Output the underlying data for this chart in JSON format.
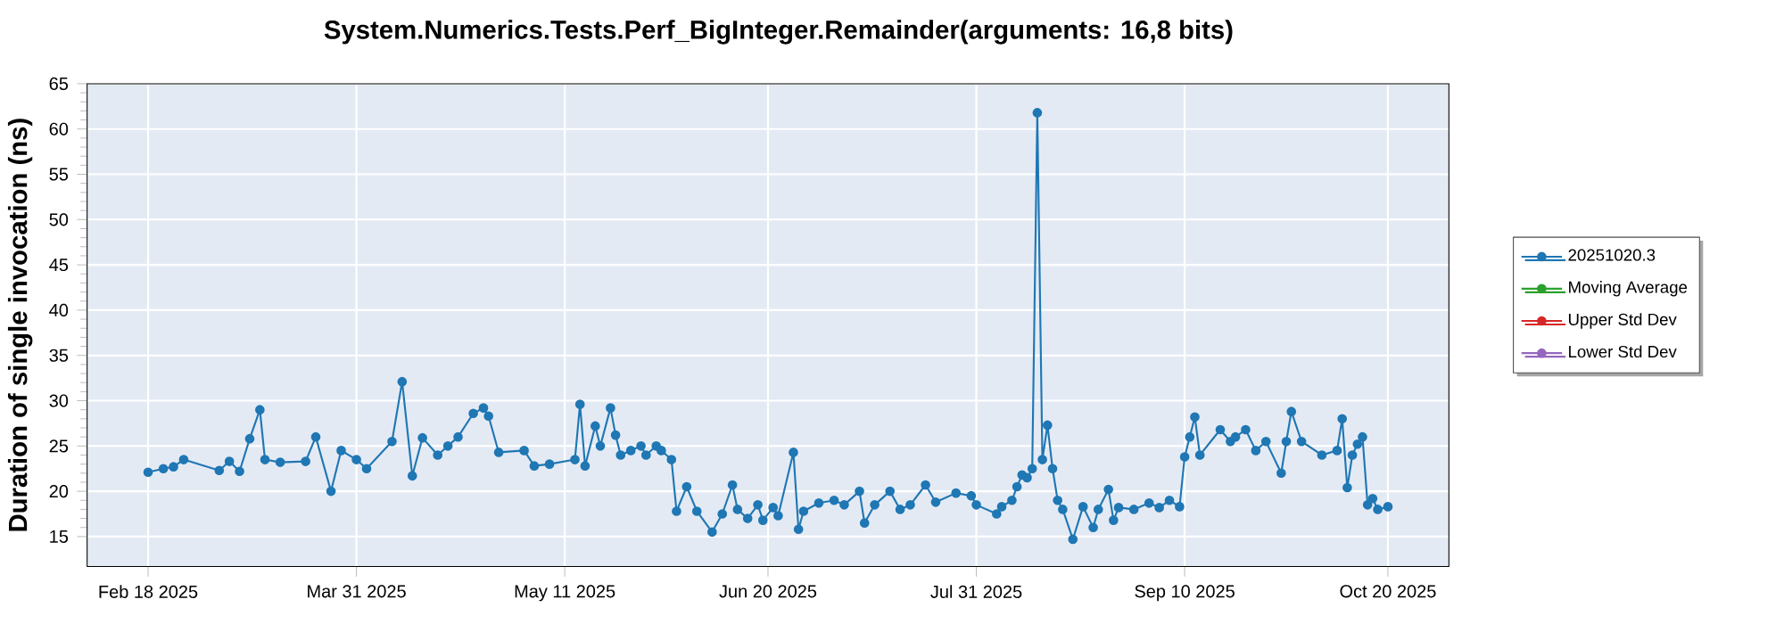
{
  "chart_data": {
    "type": "line",
    "title": "System.Numerics.Tests.Perf_BigInteger.Remainder(arguments: 16,8 bits)",
    "ylabel": "Duration of single invocation (ns)",
    "x": [
      "2025-02-18",
      "2025-02-21",
      "2025-02-23",
      "2025-02-25",
      "2025-03-04",
      "2025-03-06",
      "2025-03-08",
      "2025-03-10",
      "2025-03-12",
      "2025-03-13",
      "2025-03-16",
      "2025-03-21",
      "2025-03-23",
      "2025-03-26",
      "2025-03-28",
      "2025-03-31",
      "2025-04-02",
      "2025-04-07",
      "2025-04-09",
      "2025-04-11",
      "2025-04-13",
      "2025-04-16",
      "2025-04-18",
      "2025-04-20",
      "2025-04-23",
      "2025-04-25",
      "2025-04-26",
      "2025-04-28",
      "2025-05-03",
      "2025-05-05",
      "2025-05-08",
      "2025-05-13",
      "2025-05-14",
      "2025-05-15",
      "2025-05-17",
      "2025-05-18",
      "2025-05-20",
      "2025-05-21",
      "2025-05-22",
      "2025-05-24",
      "2025-05-26",
      "2025-05-27",
      "2025-05-29",
      "2025-05-30",
      "2025-06-01",
      "2025-06-02",
      "2025-06-04",
      "2025-06-06",
      "2025-06-09",
      "2025-06-11",
      "2025-06-13",
      "2025-06-14",
      "2025-06-16",
      "2025-06-18",
      "2025-06-19",
      "2025-06-21",
      "2025-06-22",
      "2025-06-25",
      "2025-06-26",
      "2025-06-27",
      "2025-06-30",
      "2025-07-03",
      "2025-07-05",
      "2025-07-08",
      "2025-07-09",
      "2025-07-11",
      "2025-07-14",
      "2025-07-16",
      "2025-07-18",
      "2025-07-21",
      "2025-07-23",
      "2025-07-27",
      "2025-07-30",
      "2025-07-31",
      "2025-08-04",
      "2025-08-05",
      "2025-08-07",
      "2025-08-08",
      "2025-08-09",
      "2025-08-10",
      "2025-08-11",
      "2025-08-12",
      "2025-08-13",
      "2025-08-14",
      "2025-08-15",
      "2025-08-16",
      "2025-08-17",
      "2025-08-19",
      "2025-08-21",
      "2025-08-23",
      "2025-08-24",
      "2025-08-26",
      "2025-08-27",
      "2025-08-28",
      "2025-08-31",
      "2025-09-03",
      "2025-09-05",
      "2025-09-07",
      "2025-09-09",
      "2025-09-10",
      "2025-09-11",
      "2025-09-12",
      "2025-09-13",
      "2025-09-17",
      "2025-09-19",
      "2025-09-20",
      "2025-09-22",
      "2025-09-24",
      "2025-09-26",
      "2025-09-29",
      "2025-09-30",
      "2025-10-01",
      "2025-10-03",
      "2025-10-07",
      "2025-10-10",
      "2025-10-11",
      "2025-10-12",
      "2025-10-13",
      "2025-10-14",
      "2025-10-15",
      "2025-10-16",
      "2025-10-17",
      "2025-10-18",
      "2025-10-20"
    ],
    "series": [
      {
        "name": "20251020.3",
        "color": "#1f77b4",
        "values": [
          22.1,
          22.5,
          22.7,
          23.5,
          22.3,
          23.3,
          22.2,
          25.8,
          29,
          23.5,
          23.2,
          23.3,
          26,
          20,
          24.5,
          23.5,
          22.5,
          25.5,
          32.1,
          21.7,
          25.9,
          24,
          25,
          26,
          28.6,
          29.2,
          28.3,
          24.3,
          24.5,
          22.8,
          23,
          23.5,
          29.6,
          22.8,
          27.2,
          25,
          29.2,
          26.2,
          24,
          24.5,
          25,
          24,
          25,
          24.5,
          23.5,
          17.8,
          20.5,
          17.8,
          15.5,
          17.5,
          20.7,
          18,
          17,
          18.5,
          16.8,
          18.2,
          17.3,
          24.3,
          15.8,
          17.8,
          18.7,
          19,
          18.5,
          20,
          16.5,
          18.5,
          20,
          18,
          18.5,
          20.7,
          18.8,
          19.8,
          19.5,
          18.5,
          17.5,
          18.3,
          19,
          20.5,
          21.8,
          21.5,
          22.5,
          61.8,
          23.5,
          27.3,
          22.5,
          19,
          18,
          14.7,
          18.3,
          16,
          18,
          20.2,
          16.8,
          18.2,
          18,
          18.7,
          18.2,
          19,
          18.3,
          23.8,
          26,
          28.2,
          24,
          26.8,
          25.5,
          26,
          26.8,
          24.5,
          25.5,
          22,
          25.5,
          28.8,
          25.5,
          24,
          24.5,
          28,
          20.4,
          24,
          25.2,
          26,
          18.5,
          19.2,
          18,
          18.3
        ]
      },
      {
        "name": "Moving Average",
        "color": "#2ca02c",
        "values": [
          null,
          null,
          null,
          null,
          null,
          null,
          null,
          null,
          null,
          null,
          null,
          null,
          null,
          null,
          null,
          null,
          null,
          null,
          null,
          null,
          null,
          null,
          null,
          null,
          null,
          null,
          null,
          null,
          null,
          null,
          null,
          null,
          null,
          null,
          null,
          null,
          null,
          null,
          null,
          null,
          null,
          null,
          null,
          null,
          null,
          null,
          null,
          null,
          null,
          null,
          null,
          null,
          null,
          null,
          null,
          null,
          null,
          null,
          null,
          null,
          null,
          null,
          null,
          null,
          null,
          null,
          null,
          null,
          null,
          null,
          null,
          null,
          null,
          null,
          null,
          null,
          null,
          null,
          null,
          null,
          null,
          null,
          null,
          null,
          null,
          null,
          null,
          null,
          null,
          null,
          null,
          null,
          null,
          null,
          null,
          null,
          null,
          null,
          null,
          null,
          null,
          null,
          null,
          null,
          null,
          null,
          null,
          null,
          null,
          null,
          null,
          null,
          null,
          null,
          null,
          null,
          null,
          null,
          null,
          null,
          null,
          null,
          null,
          null
        ]
      },
      {
        "name": "Upper Std Dev",
        "color": "#d62728",
        "values": [
          null,
          null,
          null,
          null,
          null,
          null,
          null,
          null,
          null,
          null,
          null,
          null,
          null,
          null,
          null,
          null,
          null,
          null,
          null,
          null,
          null,
          null,
          null,
          null,
          null,
          null,
          null,
          null,
          null,
          null,
          null,
          null,
          null,
          null,
          null,
          null,
          null,
          null,
          null,
          null,
          null,
          null,
          null,
          null,
          null,
          null,
          null,
          null,
          null,
          null,
          null,
          null,
          null,
          null,
          null,
          null,
          null,
          null,
          null,
          null,
          null,
          null,
          null,
          null,
          null,
          null,
          null,
          null,
          null,
          null,
          null,
          null,
          null,
          null,
          null,
          null,
          null,
          null,
          null,
          null,
          null,
          null,
          null,
          null,
          null,
          null,
          null,
          null,
          null,
          null,
          null,
          null,
          null,
          null,
          null,
          null,
          null,
          null,
          null,
          null,
          null,
          null,
          null,
          null,
          null,
          null,
          null,
          null,
          null,
          null,
          null,
          null,
          null,
          null,
          null,
          null,
          null,
          null,
          null,
          null,
          null,
          null,
          null,
          null
        ]
      },
      {
        "name": "Lower Std Dev",
        "color": "#9467bd",
        "values": [
          null,
          null,
          null,
          null,
          null,
          null,
          null,
          null,
          null,
          null,
          null,
          null,
          null,
          null,
          null,
          null,
          null,
          null,
          null,
          null,
          null,
          null,
          null,
          null,
          null,
          null,
          null,
          null,
          null,
          null,
          null,
          null,
          null,
          null,
          null,
          null,
          null,
          null,
          null,
          null,
          null,
          null,
          null,
          null,
          null,
          null,
          null,
          null,
          null,
          null,
          null,
          null,
          null,
          null,
          null,
          null,
          null,
          null,
          null,
          null,
          null,
          null,
          null,
          null,
          null,
          null,
          null,
          null,
          null,
          null,
          null,
          null,
          null,
          null,
          null,
          null,
          null,
          null,
          null,
          null,
          null,
          null,
          null,
          null,
          null,
          null,
          null,
          null,
          null,
          null,
          null,
          null,
          null,
          null,
          null,
          null,
          null,
          null,
          null,
          null,
          null,
          null,
          null,
          null,
          null,
          null,
          null,
          null,
          null,
          null,
          null,
          null,
          null,
          null,
          null,
          null,
          null,
          null,
          null,
          null,
          null,
          null,
          null,
          null
        ]
      }
    ],
    "xlim": [
      "2025-02-06",
      "2025-11-01"
    ],
    "xticks": [
      {
        "value": "2025-02-18",
        "label": "Feb 18 2025"
      },
      {
        "value": "2025-03-31",
        "label": "Mar 31 2025"
      },
      {
        "value": "2025-05-11",
        "label": "May 11 2025"
      },
      {
        "value": "2025-06-20",
        "label": "Jun 20 2025"
      },
      {
        "value": "2025-07-31",
        "label": "Jul 31 2025"
      },
      {
        "value": "2025-09-10",
        "label": "Sep 10 2025"
      },
      {
        "value": "2025-10-20",
        "label": "Oct 20 2025"
      }
    ],
    "ylim": [
      11.7,
      65
    ],
    "yticks": [
      15,
      20,
      25,
      30,
      35,
      40,
      45,
      50,
      55,
      60,
      65
    ],
    "grid": true,
    "legend": "right",
    "marker": "circle",
    "line_style": "solid"
  }
}
